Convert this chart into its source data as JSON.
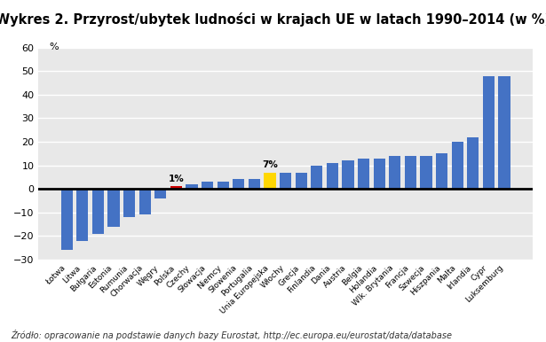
{
  "title": "Wykres 2. Przyrost/ubytek ludności w krajach UE w latach 1990–2014 (w %)",
  "ylabel_label": "%",
  "footnote": "Źródło: opracowanie na podstawie danych bazy Eurostat, http://ec.europa.eu/eurostat/data/database",
  "categories": [
    "Łotwa",
    "Litwa",
    "Bułgaria",
    "Estonia",
    "Rumunia",
    "Chorwacja",
    "Węgry",
    "Polska",
    "Czechy",
    "Słowacja",
    "Niemcy",
    "Słowenia",
    "Portugalia",
    "Unia Europejska",
    "Włochy",
    "Grecja",
    "Finlandia",
    "Dania",
    "Austria",
    "Belgia",
    "Holandia",
    "Wlk. Brytania",
    "Francja",
    "Szwecja",
    "Hiszpania",
    "Malta",
    "Irlandia",
    "Cypr",
    "Luksemburg"
  ],
  "values": [
    -26,
    -22,
    -19,
    -16,
    -12,
    -11,
    -4,
    1,
    2,
    3,
    3,
    4,
    4,
    7,
    7,
    7,
    10,
    11,
    12,
    13,
    13,
    14,
    14,
    14,
    15,
    20,
    22,
    48,
    48
  ],
  "bar_colors": [
    "#4472C4",
    "#4472C4",
    "#4472C4",
    "#4472C4",
    "#4472C4",
    "#4472C4",
    "#4472C4",
    "#CC0000",
    "#4472C4",
    "#4472C4",
    "#4472C4",
    "#4472C4",
    "#4472C4",
    "#FFD700",
    "#4472C4",
    "#4472C4",
    "#4472C4",
    "#4472C4",
    "#4472C4",
    "#4472C4",
    "#4472C4",
    "#4472C4",
    "#4472C4",
    "#4472C4",
    "#4472C4",
    "#4472C4",
    "#4472C4",
    "#4472C4",
    "#4472C4"
  ],
  "polska_idx": 7,
  "ue_idx": 13,
  "polska_label": "1%",
  "ue_label": "7%",
  "ylim": [
    -30,
    60
  ],
  "yticks": [
    -30,
    -20,
    -10,
    0,
    10,
    20,
    30,
    40,
    50,
    60
  ],
  "plot_bg_color": "#E8E8E8",
  "grid_color": "#FFFFFF",
  "title_fontsize": 10.5,
  "tick_fontsize": 6.5,
  "ytick_fontsize": 8,
  "footnote_fontsize": 7,
  "annotation_fontsize": 7.5,
  "bar_width": 0.75
}
